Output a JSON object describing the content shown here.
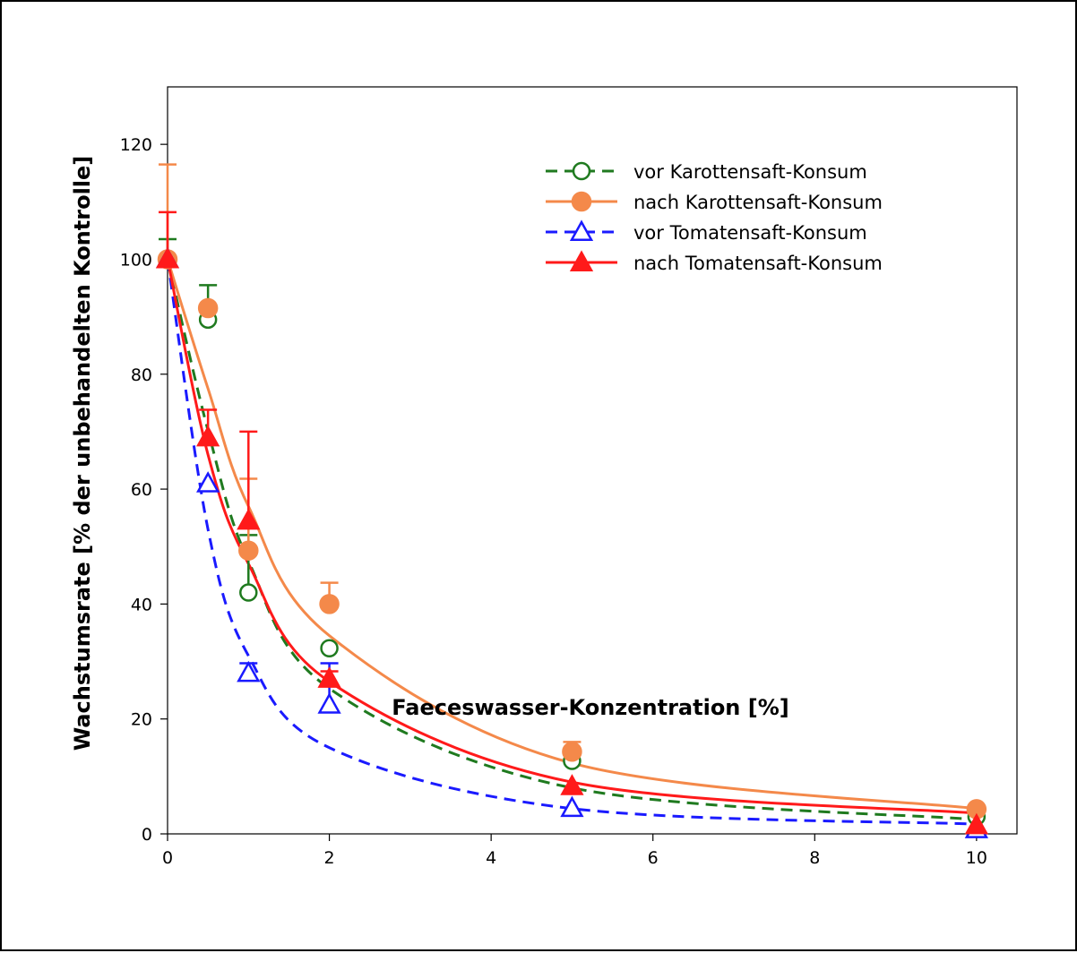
{
  "chart_data": {
    "type": "scatter",
    "xlabel": "Faeceswasser-Konzentration [%]",
    "ylabel": "Wachstumsrate [% der unbehandelten Kontrolle]",
    "xlim": [
      0,
      10.5
    ],
    "ylim": [
      0,
      130
    ],
    "xticks": [
      0,
      2,
      4,
      6,
      8,
      10
    ],
    "yticks": [
      0,
      20,
      40,
      60,
      80,
      100,
      120
    ],
    "grid": false,
    "legend_position": "top-right",
    "x": [
      0,
      0.5,
      1,
      2,
      5,
      10
    ],
    "series": [
      {
        "name": "vor Karottensaft-Konsum",
        "color": "#1f7a1f",
        "marker": "circle-open",
        "line": "dashed",
        "values": [
          100,
          89.5,
          42,
          32.3,
          12.7,
          3
        ],
        "errors": [
          3.5,
          6,
          10,
          0,
          0,
          0
        ],
        "fit": [
          100,
          70.2,
          47.5,
          25.3,
          8,
          2.5
        ]
      },
      {
        "name": "nach Karottensaft-Konsum",
        "color": "#f4894a",
        "marker": "circle-filled",
        "line": "solid",
        "values": [
          100,
          91.5,
          49.3,
          40,
          14.3,
          4.3
        ],
        "errors": [
          16.5,
          0,
          12.5,
          3.7,
          1.7,
          0
        ],
        "fit": [
          100,
          77.5,
          57,
          34.5,
          12.3,
          4.4
        ]
      },
      {
        "name": "vor Tomatensaft-Konsum",
        "color": "#1a1aff",
        "marker": "triangle-open",
        "line": "dashed",
        "values": [
          100,
          61,
          28,
          22.5,
          4.5,
          0.8
        ],
        "errors": [
          0,
          0,
          1.7,
          7.2,
          0,
          0
        ],
        "fit": [
          100,
          53,
          31,
          15,
          4.4,
          1.7
        ]
      },
      {
        "name": "nach Tomatensaft-Konsum",
        "color": "#ff1a1a",
        "marker": "triangle-filled",
        "line": "solid",
        "values": [
          100,
          69,
          54.5,
          27,
          8.3,
          1.5
        ],
        "errors": [
          8.2,
          4.8,
          15.5,
          1.3,
          0,
          0
        ],
        "fit": [
          100,
          66,
          47,
          26.5,
          9,
          3.6
        ]
      }
    ]
  }
}
